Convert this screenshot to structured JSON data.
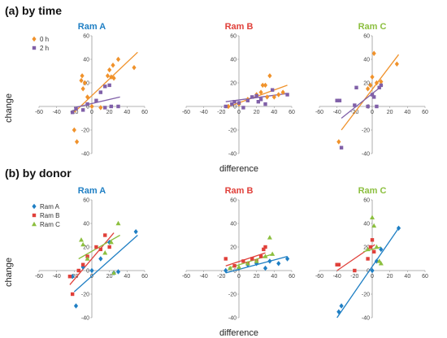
{
  "sections": [
    {
      "label": "(a) by time"
    },
    {
      "label": "(b) by donor"
    }
  ],
  "legends": {
    "time": [
      {
        "name": "0 h",
        "color": "#f0922b",
        "marker": "diamond"
      },
      {
        "name": "2 h",
        "color": "#8060a8",
        "marker": "square"
      }
    ],
    "donor": [
      {
        "name": "Ram A",
        "color": "#1f7fc4",
        "marker": "diamond"
      },
      {
        "name": "Ram B",
        "color": "#e0403a",
        "marker": "square"
      },
      {
        "name": "Ram C",
        "color": "#8cbf3f",
        "marker": "triangle"
      }
    ]
  },
  "chart_data": [
    {
      "type": "scatter",
      "group": "(a) by time",
      "title": "Ram A",
      "title_color": "#1f7fc4",
      "xlabel": "",
      "ylabel": "change",
      "xlim": [
        -60,
        60
      ],
      "ylim": [
        -40,
        60
      ],
      "xticks": [
        -60,
        -40,
        -20,
        0,
        20,
        40,
        60
      ],
      "yticks": [
        -40,
        -20,
        0,
        20,
        40,
        60
      ],
      "series": [
        {
          "name": "0 h",
          "color": "#f0922b",
          "marker": "diamond",
          "points": [
            [
              -20,
              -20
            ],
            [
              -17,
              -30
            ],
            [
              -12,
              22
            ],
            [
              -10,
              15
            ],
            [
              -11,
              26
            ],
            [
              -8,
              20
            ],
            [
              -5,
              8
            ],
            [
              0,
              0
            ],
            [
              10,
              -1
            ],
            [
              18,
              26
            ],
            [
              20,
              31
            ],
            [
              22,
              25
            ],
            [
              24,
              35
            ],
            [
              25,
              24
            ],
            [
              30,
              40
            ],
            [
              48,
              33
            ]
          ],
          "trend": [
            [
              -20,
              -5
            ],
            [
              52,
              46
            ]
          ]
        },
        {
          "name": "2 h",
          "color": "#8060a8",
          "marker": "square",
          "points": [
            [
              -22,
              -5
            ],
            [
              -18,
              -2
            ],
            [
              -10,
              -3
            ],
            [
              -5,
              2
            ],
            [
              5,
              5
            ],
            [
              10,
              12
            ],
            [
              15,
              17
            ],
            [
              20,
              18
            ],
            [
              22,
              0
            ],
            [
              30,
              0
            ],
            [
              15,
              -1
            ]
          ],
          "trend": [
            [
              -20,
              -1
            ],
            [
              32,
              8
            ]
          ]
        }
      ]
    },
    {
      "type": "scatter",
      "group": "(a) by time",
      "title": "Ram B",
      "title_color": "#e0403a",
      "xlabel": "difference",
      "ylabel": "",
      "xlim": [
        -60,
        60
      ],
      "ylim": [
        -40,
        60
      ],
      "xticks": [
        -60,
        -40,
        -20,
        0,
        20,
        40,
        60
      ],
      "yticks": [
        -40,
        -20,
        0,
        20,
        40,
        60
      ],
      "series": [
        {
          "name": "0 h",
          "color": "#f0922b",
          "marker": "diamond",
          "points": [
            [
              -12,
              0
            ],
            [
              0,
              2
            ],
            [
              10,
              6
            ],
            [
              20,
              10
            ],
            [
              25,
              12
            ],
            [
              27,
              18
            ],
            [
              30,
              18
            ],
            [
              32,
              8
            ],
            [
              35,
              26
            ],
            [
              40,
              8
            ],
            [
              45,
              10
            ],
            [
              50,
              12
            ]
          ],
          "trend": [
            [
              -15,
              -1
            ],
            [
              55,
              18
            ]
          ]
        },
        {
          "name": "2 h",
          "color": "#8060a8",
          "marker": "square",
          "points": [
            [
              -15,
              0
            ],
            [
              -8,
              2
            ],
            [
              -5,
              4
            ],
            [
              0,
              3
            ],
            [
              5,
              -1
            ],
            [
              10,
              5
            ],
            [
              15,
              8
            ],
            [
              20,
              9
            ],
            [
              22,
              4
            ],
            [
              25,
              6
            ],
            [
              30,
              2
            ],
            [
              38,
              14
            ],
            [
              55,
              10
            ]
          ],
          "trend": [
            [
              -15,
              4
            ],
            [
              55,
              11
            ]
          ]
        }
      ]
    },
    {
      "type": "scatter",
      "group": "(a) by time",
      "title": "Ram C",
      "title_color": "#8cbf3f",
      "xlabel": "",
      "ylabel": "",
      "xlim": [
        -60,
        60
      ],
      "ylim": [
        -40,
        60
      ],
      "xticks": [
        -60,
        -40,
        -20,
        0,
        20,
        40,
        60
      ],
      "yticks": [
        -40,
        -20,
        0,
        20,
        40,
        60
      ],
      "series": [
        {
          "name": "0 h",
          "color": "#f0922b",
          "marker": "diamond",
          "points": [
            [
              -38,
              -30
            ],
            [
              -5,
              15
            ],
            [
              -2,
              18
            ],
            [
              0,
              25
            ],
            [
              2,
              45
            ],
            [
              5,
              20
            ],
            [
              10,
              21
            ],
            [
              28,
              36
            ]
          ],
          "trend": [
            [
              -35,
              -20
            ],
            [
              30,
              44
            ]
          ]
        },
        {
          "name": "2 h",
          "color": "#8060a8",
          "marker": "square",
          "points": [
            [
              -40,
              5
            ],
            [
              -37,
              5
            ],
            [
              -35,
              -35
            ],
            [
              -20,
              1
            ],
            [
              -18,
              16
            ],
            [
              -5,
              0
            ],
            [
              0,
              10
            ],
            [
              2,
              8
            ],
            [
              5,
              0
            ],
            [
              8,
              16
            ],
            [
              10,
              18
            ]
          ],
          "trend": [
            [
              -35,
              -10
            ],
            [
              12,
              18
            ]
          ]
        }
      ]
    },
    {
      "type": "scatter",
      "group": "(b) by donor",
      "title": "Ram A",
      "title_color": "#1f7fc4",
      "xlabel": "",
      "ylabel": "change",
      "xlim": [
        -60,
        60
      ],
      "ylim": [
        -40,
        60
      ],
      "xticks": [
        -60,
        -40,
        -20,
        0,
        20,
        40,
        60
      ],
      "yticks": [
        -40,
        -20,
        0,
        20,
        40,
        60
      ],
      "series": [
        {
          "name": "Ram A",
          "color": "#1f7fc4",
          "marker": "diamond",
          "points": [
            [
              -22,
              -5
            ],
            [
              -18,
              -30
            ],
            [
              -10,
              3
            ],
            [
              0,
              0
            ],
            [
              10,
              10
            ],
            [
              20,
              24
            ],
            [
              25,
              -2
            ],
            [
              30,
              -1
            ],
            [
              50,
              33
            ]
          ],
          "trend": [
            [
              -20,
              -18
            ],
            [
              52,
              30
            ]
          ]
        },
        {
          "name": "Ram B",
          "color": "#e0403a",
          "marker": "square",
          "points": [
            [
              -25,
              -5
            ],
            [
              -22,
              -20
            ],
            [
              -15,
              0
            ],
            [
              -10,
              5
            ],
            [
              -5,
              12
            ],
            [
              5,
              20
            ],
            [
              10,
              18
            ],
            [
              15,
              30
            ],
            [
              20,
              20
            ]
          ],
          "trend": [
            [
              -25,
              -12
            ],
            [
              25,
              32
            ]
          ]
        },
        {
          "name": "Ram C",
          "color": "#8cbf3f",
          "marker": "triangle",
          "points": [
            [
              -12,
              26
            ],
            [
              -10,
              22
            ],
            [
              -5,
              10
            ],
            [
              15,
              15
            ],
            [
              22,
              24
            ],
            [
              25,
              -2
            ],
            [
              30,
              40
            ]
          ],
          "trend": [
            [
              -15,
              10
            ],
            [
              32,
              30
            ]
          ]
        }
      ]
    },
    {
      "type": "scatter",
      "group": "(b) by donor",
      "title": "Ram B",
      "title_color": "#e0403a",
      "xlabel": "difference",
      "ylabel": "",
      "xlim": [
        -60,
        60
      ],
      "ylim": [
        -40,
        60
      ],
      "xticks": [
        -60,
        -40,
        -20,
        0,
        20,
        40,
        60
      ],
      "yticks": [
        -40,
        -20,
        0,
        20,
        40,
        60
      ],
      "series": [
        {
          "name": "Ram A",
          "color": "#1f7fc4",
          "marker": "diamond",
          "points": [
            [
              -15,
              0
            ],
            [
              0,
              2
            ],
            [
              10,
              5
            ],
            [
              20,
              6
            ],
            [
              30,
              2
            ],
            [
              35,
              8
            ],
            [
              45,
              6
            ],
            [
              55,
              10
            ]
          ],
          "trend": [
            [
              -15,
              -2
            ],
            [
              55,
              12
            ]
          ]
        },
        {
          "name": "Ram B",
          "color": "#e0403a",
          "marker": "square",
          "points": [
            [
              -15,
              10
            ],
            [
              -5,
              4
            ],
            [
              5,
              8
            ],
            [
              10,
              6
            ],
            [
              15,
              10
            ],
            [
              20,
              8
            ],
            [
              25,
              12
            ],
            [
              28,
              18
            ],
            [
              30,
              20
            ]
          ],
          "trend": [
            [
              -15,
              4
            ],
            [
              30,
              15
            ]
          ]
        },
        {
          "name": "Ram C",
          "color": "#8cbf3f",
          "marker": "triangle",
          "points": [
            [
              -10,
              2
            ],
            [
              0,
              3
            ],
            [
              10,
              6
            ],
            [
              20,
              8
            ],
            [
              30,
              12
            ],
            [
              35,
              28
            ],
            [
              38,
              14
            ]
          ],
          "trend": [
            [
              -12,
              2
            ],
            [
              38,
              14
            ]
          ]
        }
      ]
    },
    {
      "type": "scatter",
      "group": "(b) by donor",
      "title": "Ram C",
      "title_color": "#8cbf3f",
      "xlabel": "",
      "ylabel": "",
      "xlim": [
        -60,
        60
      ],
      "ylim": [
        -40,
        60
      ],
      "xticks": [
        -60,
        -40,
        -20,
        0,
        20,
        40,
        60
      ],
      "yticks": [
        -40,
        -20,
        0,
        20,
        40,
        60
      ],
      "series": [
        {
          "name": "Ram A",
          "color": "#1f7fc4",
          "marker": "diamond",
          "points": [
            [
              -38,
              -35
            ],
            [
              -35,
              -30
            ],
            [
              0,
              0
            ],
            [
              5,
              8
            ],
            [
              10,
              18
            ],
            [
              30,
              36
            ]
          ],
          "trend": [
            [
              -40,
              -40
            ],
            [
              30,
              36
            ]
          ]
        },
        {
          "name": "Ram B",
          "color": "#e0403a",
          "marker": "square",
          "points": [
            [
              -40,
              5
            ],
            [
              -38,
              5
            ],
            [
              -20,
              0
            ],
            [
              -5,
              10
            ],
            [
              -2,
              20
            ],
            [
              0,
              26
            ],
            [
              2,
              16
            ]
          ],
          "trend": [
            [
              -40,
              0
            ],
            [
              3,
              22
            ]
          ]
        },
        {
          "name": "Ram C",
          "color": "#8cbf3f",
          "marker": "triangle",
          "points": [
            [
              -5,
              18
            ],
            [
              0,
              45
            ],
            [
              2,
              38
            ],
            [
              5,
              20
            ],
            [
              8,
              8
            ],
            [
              10,
              6
            ]
          ],
          "trend": [
            [
              -10,
              16
            ],
            [
              10,
              20
            ]
          ]
        }
      ]
    }
  ]
}
